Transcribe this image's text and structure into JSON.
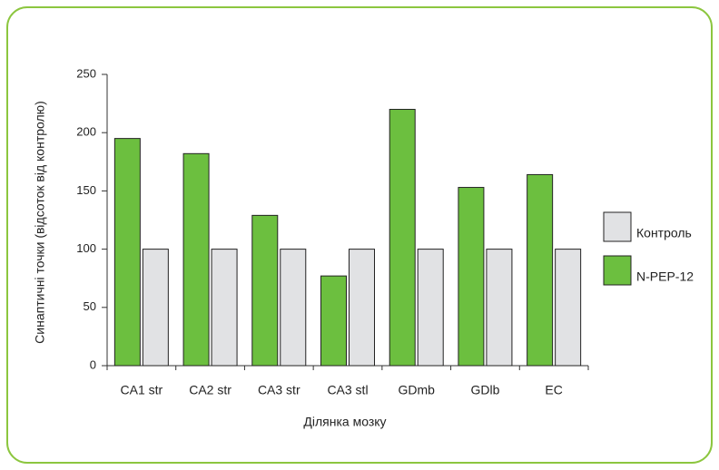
{
  "chart_data": {
    "type": "bar",
    "x_label": "Ділянка мозку",
    "y_label": "Синаптичні точки (відсоток від контролю)",
    "categories": [
      "CA1 str",
      "CA2 str",
      "CA3 str",
      "CA3 stl",
      "GDmb",
      "GDlb",
      "EC"
    ],
    "series": [
      {
        "name": "Контроль",
        "color": "#e1e2e4",
        "values": [
          100,
          100,
          100,
          100,
          100,
          100,
          100
        ]
      },
      {
        "name": "N-PEP-12",
        "color": "#6cbf3f",
        "values": [
          195,
          182,
          129,
          77,
          220,
          153,
          164
        ]
      }
    ],
    "ylim": [
      0,
      250
    ],
    "yticks": [
      0,
      50,
      100,
      150,
      200,
      250
    ],
    "legend": "right"
  }
}
